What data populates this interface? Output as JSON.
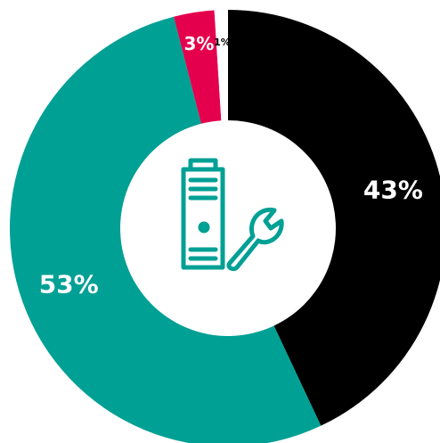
{
  "chart_data": {
    "type": "donut",
    "categories": [
      null,
      null,
      null,
      null
    ],
    "values": [
      43,
      53,
      3,
      1
    ],
    "value_labels": [
      "43%",
      "53%",
      "3%",
      "1%"
    ],
    "colors": [
      "#000000",
      "#00a095",
      "#e4004c",
      "#ffffff"
    ]
  }
}
